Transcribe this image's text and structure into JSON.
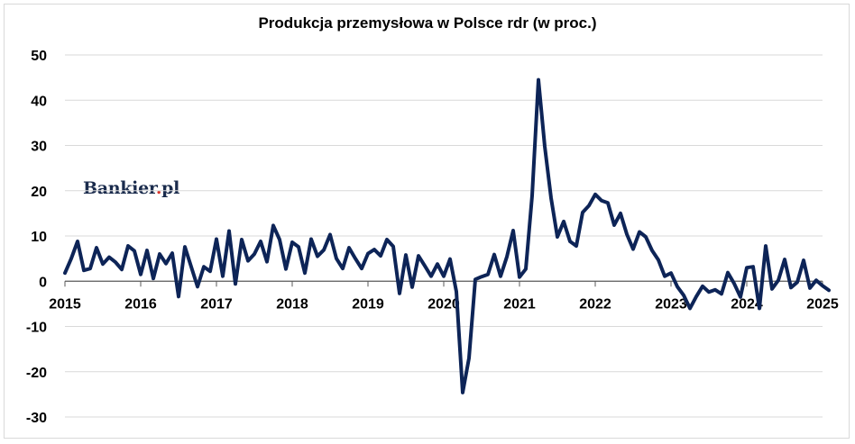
{
  "chart_data": {
    "type": "line",
    "title": "Produkcja przemysłowa w Polsce rdr (w proc.)",
    "xlabel": "",
    "ylabel": "",
    "ylim": [
      -30,
      50
    ],
    "yticks": [
      "50",
      "40",
      "30",
      "20",
      "10",
      "0",
      "-10",
      "-20",
      "-30"
    ],
    "ytick_values": [
      50,
      40,
      30,
      20,
      10,
      0,
      -10,
      -20,
      -30
    ],
    "xticks": [
      "2015",
      "2016",
      "2017",
      "2018",
      "2019",
      "2020",
      "2021",
      "2022",
      "2023",
      "2024",
      "2025"
    ],
    "xtick_values": [
      2015,
      2016,
      2017,
      2018,
      2019,
      2020,
      2021,
      2022,
      2023,
      2024,
      2025
    ],
    "grid": true,
    "line_color": "#0d2457",
    "series": [
      {
        "name": "",
        "x_start": "2015-01",
        "values": [
          1.8,
          5.0,
          8.8,
          2.4,
          2.8,
          7.4,
          3.8,
          5.3,
          4.2,
          2.6,
          7.8,
          6.7,
          1.5,
          6.8,
          0.6,
          6.0,
          3.9,
          6.2,
          -3.4,
          7.6,
          3.2,
          -1.2,
          3.2,
          2.2,
          9.3,
          1.1,
          11.1,
          -0.6,
          9.2,
          4.5,
          6.0,
          8.8,
          4.3,
          12.3,
          9.2,
          2.7,
          8.6,
          7.6,
          1.8,
          9.3,
          5.5,
          6.9,
          10.3,
          5.0,
          2.8,
          7.4,
          5.0,
          2.8,
          6.1,
          7.0,
          5.6,
          9.2,
          7.7,
          -2.7,
          5.8,
          -1.3,
          5.6,
          3.4,
          1.1,
          3.8,
          1.1,
          4.9,
          -2.3,
          -24.6,
          -17.0,
          0.4,
          1.0,
          1.5,
          5.9,
          1.1,
          5.4,
          11.2,
          0.9,
          2.7,
          18.9,
          44.5,
          29.8,
          18.4,
          9.8,
          13.2,
          8.8,
          7.8,
          15.2,
          16.7,
          19.2,
          17.8,
          17.3,
          12.4,
          15.0,
          10.4,
          7.1,
          10.9,
          9.8,
          6.8,
          4.7,
          1.1,
          1.8,
          -1.2,
          -3.1,
          -6.0,
          -3.4,
          -1.1,
          -2.4,
          -1.9,
          -2.8,
          1.9,
          -0.5,
          -3.5,
          3.0,
          3.2,
          -6.0,
          7.8,
          -1.7,
          0.2,
          4.8,
          -1.4,
          -0.2,
          4.6,
          -1.5,
          0.2,
          -1.0,
          -2.0
        ]
      }
    ]
  },
  "logo": {
    "text_main": "Bankier",
    "text_dot": ".",
    "text_tld": "pl"
  }
}
